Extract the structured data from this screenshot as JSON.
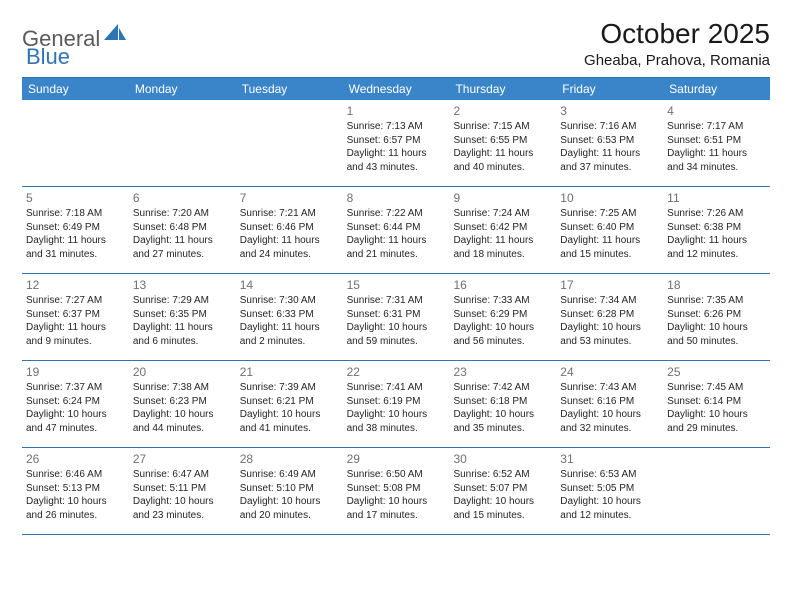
{
  "logo": {
    "part1": "General",
    "part2": "Blue"
  },
  "title": "October 2025",
  "location": "Gheaba, Prahova, Romania",
  "colors": {
    "header_bg": "#3a85c9",
    "border": "#2f74b5",
    "logo_blue": "#2f74b5",
    "logo_gray": "#5a5a5a",
    "text": "#202020",
    "daynum": "#707070"
  },
  "weekdays": [
    "Sunday",
    "Monday",
    "Tuesday",
    "Wednesday",
    "Thursday",
    "Friday",
    "Saturday"
  ],
  "weeks": [
    [
      {
        "n": "",
        "sr": "",
        "ss": "",
        "dl": ""
      },
      {
        "n": "",
        "sr": "",
        "ss": "",
        "dl": ""
      },
      {
        "n": "",
        "sr": "",
        "ss": "",
        "dl": ""
      },
      {
        "n": "1",
        "sr": "Sunrise: 7:13 AM",
        "ss": "Sunset: 6:57 PM",
        "dl": "Daylight: 11 hours and 43 minutes."
      },
      {
        "n": "2",
        "sr": "Sunrise: 7:15 AM",
        "ss": "Sunset: 6:55 PM",
        "dl": "Daylight: 11 hours and 40 minutes."
      },
      {
        "n": "3",
        "sr": "Sunrise: 7:16 AM",
        "ss": "Sunset: 6:53 PM",
        "dl": "Daylight: 11 hours and 37 minutes."
      },
      {
        "n": "4",
        "sr": "Sunrise: 7:17 AM",
        "ss": "Sunset: 6:51 PM",
        "dl": "Daylight: 11 hours and 34 minutes."
      }
    ],
    [
      {
        "n": "5",
        "sr": "Sunrise: 7:18 AM",
        "ss": "Sunset: 6:49 PM",
        "dl": "Daylight: 11 hours and 31 minutes."
      },
      {
        "n": "6",
        "sr": "Sunrise: 7:20 AM",
        "ss": "Sunset: 6:48 PM",
        "dl": "Daylight: 11 hours and 27 minutes."
      },
      {
        "n": "7",
        "sr": "Sunrise: 7:21 AM",
        "ss": "Sunset: 6:46 PM",
        "dl": "Daylight: 11 hours and 24 minutes."
      },
      {
        "n": "8",
        "sr": "Sunrise: 7:22 AM",
        "ss": "Sunset: 6:44 PM",
        "dl": "Daylight: 11 hours and 21 minutes."
      },
      {
        "n": "9",
        "sr": "Sunrise: 7:24 AM",
        "ss": "Sunset: 6:42 PM",
        "dl": "Daylight: 11 hours and 18 minutes."
      },
      {
        "n": "10",
        "sr": "Sunrise: 7:25 AM",
        "ss": "Sunset: 6:40 PM",
        "dl": "Daylight: 11 hours and 15 minutes."
      },
      {
        "n": "11",
        "sr": "Sunrise: 7:26 AM",
        "ss": "Sunset: 6:38 PM",
        "dl": "Daylight: 11 hours and 12 minutes."
      }
    ],
    [
      {
        "n": "12",
        "sr": "Sunrise: 7:27 AM",
        "ss": "Sunset: 6:37 PM",
        "dl": "Daylight: 11 hours and 9 minutes."
      },
      {
        "n": "13",
        "sr": "Sunrise: 7:29 AM",
        "ss": "Sunset: 6:35 PM",
        "dl": "Daylight: 11 hours and 6 minutes."
      },
      {
        "n": "14",
        "sr": "Sunrise: 7:30 AM",
        "ss": "Sunset: 6:33 PM",
        "dl": "Daylight: 11 hours and 2 minutes."
      },
      {
        "n": "15",
        "sr": "Sunrise: 7:31 AM",
        "ss": "Sunset: 6:31 PM",
        "dl": "Daylight: 10 hours and 59 minutes."
      },
      {
        "n": "16",
        "sr": "Sunrise: 7:33 AM",
        "ss": "Sunset: 6:29 PM",
        "dl": "Daylight: 10 hours and 56 minutes."
      },
      {
        "n": "17",
        "sr": "Sunrise: 7:34 AM",
        "ss": "Sunset: 6:28 PM",
        "dl": "Daylight: 10 hours and 53 minutes."
      },
      {
        "n": "18",
        "sr": "Sunrise: 7:35 AM",
        "ss": "Sunset: 6:26 PM",
        "dl": "Daylight: 10 hours and 50 minutes."
      }
    ],
    [
      {
        "n": "19",
        "sr": "Sunrise: 7:37 AM",
        "ss": "Sunset: 6:24 PM",
        "dl": "Daylight: 10 hours and 47 minutes."
      },
      {
        "n": "20",
        "sr": "Sunrise: 7:38 AM",
        "ss": "Sunset: 6:23 PM",
        "dl": "Daylight: 10 hours and 44 minutes."
      },
      {
        "n": "21",
        "sr": "Sunrise: 7:39 AM",
        "ss": "Sunset: 6:21 PM",
        "dl": "Daylight: 10 hours and 41 minutes."
      },
      {
        "n": "22",
        "sr": "Sunrise: 7:41 AM",
        "ss": "Sunset: 6:19 PM",
        "dl": "Daylight: 10 hours and 38 minutes."
      },
      {
        "n": "23",
        "sr": "Sunrise: 7:42 AM",
        "ss": "Sunset: 6:18 PM",
        "dl": "Daylight: 10 hours and 35 minutes."
      },
      {
        "n": "24",
        "sr": "Sunrise: 7:43 AM",
        "ss": "Sunset: 6:16 PM",
        "dl": "Daylight: 10 hours and 32 minutes."
      },
      {
        "n": "25",
        "sr": "Sunrise: 7:45 AM",
        "ss": "Sunset: 6:14 PM",
        "dl": "Daylight: 10 hours and 29 minutes."
      }
    ],
    [
      {
        "n": "26",
        "sr": "Sunrise: 6:46 AM",
        "ss": "Sunset: 5:13 PM",
        "dl": "Daylight: 10 hours and 26 minutes."
      },
      {
        "n": "27",
        "sr": "Sunrise: 6:47 AM",
        "ss": "Sunset: 5:11 PM",
        "dl": "Daylight: 10 hours and 23 minutes."
      },
      {
        "n": "28",
        "sr": "Sunrise: 6:49 AM",
        "ss": "Sunset: 5:10 PM",
        "dl": "Daylight: 10 hours and 20 minutes."
      },
      {
        "n": "29",
        "sr": "Sunrise: 6:50 AM",
        "ss": "Sunset: 5:08 PM",
        "dl": "Daylight: 10 hours and 17 minutes."
      },
      {
        "n": "30",
        "sr": "Sunrise: 6:52 AM",
        "ss": "Sunset: 5:07 PM",
        "dl": "Daylight: 10 hours and 15 minutes."
      },
      {
        "n": "31",
        "sr": "Sunrise: 6:53 AM",
        "ss": "Sunset: 5:05 PM",
        "dl": "Daylight: 10 hours and 12 minutes."
      },
      {
        "n": "",
        "sr": "",
        "ss": "",
        "dl": ""
      }
    ]
  ]
}
